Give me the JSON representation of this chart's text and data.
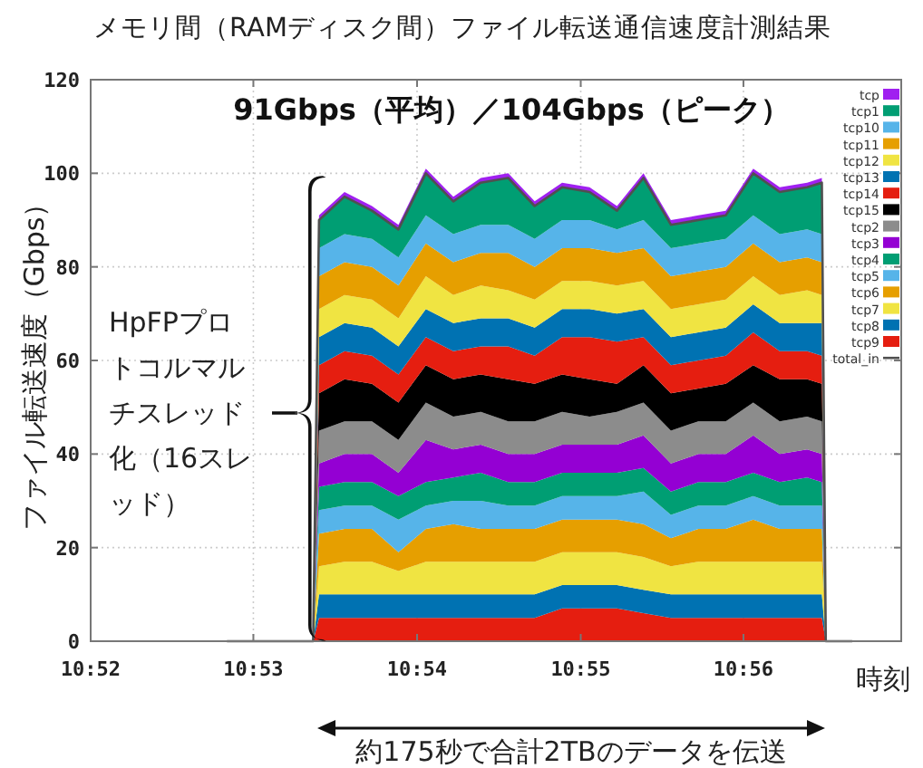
{
  "chart_data": {
    "type": "area",
    "stacked": true,
    "title": "メモリ間（RAMディスク間）ファイル転送通信速度計測結果",
    "xlabel": "時刻",
    "ylabel": "ファイル転送速度（Gbps）",
    "annotations": [
      "91Gbps（平均）／104Gbps（ピーク）",
      "HpFPプロトコルマルチスレッド化（16スレッド）",
      "約175秒で合計2TBのデータを伝送"
    ],
    "x": [
      10.8894,
      10.89,
      10.8926,
      10.8954,
      10.8981,
      10.9009,
      10.9037,
      10.9065,
      10.9093,
      10.912,
      10.9148,
      10.9176,
      10.9204,
      10.9231,
      10.9259,
      10.9287,
      10.9315,
      10.9343,
      10.937,
      10.9398,
      10.9413,
      10.9417
    ],
    "xlim": [
      10.8667,
      10.9494
    ],
    "xticks": [
      {
        "value": 10.8667,
        "label": "10:52"
      },
      {
        "value": 10.8833,
        "label": "10:53"
      },
      {
        "value": 10.9,
        "label": "10:54"
      },
      {
        "value": 10.9167,
        "label": "10:55"
      },
      {
        "value": 10.9333,
        "label": "10:56"
      }
    ],
    "ylim": [
      0,
      120
    ],
    "yticks": [
      0,
      20,
      40,
      60,
      80,
      100,
      120
    ],
    "grid": true,
    "legend": "top right",
    "series": [
      {
        "name": "tcp9",
        "color": "#e51e10",
        "values": [
          0,
          5,
          5,
          5,
          5,
          5,
          5,
          5,
          5,
          5,
          7,
          7,
          7,
          6,
          5,
          5,
          5,
          5,
          5,
          5,
          5,
          0
        ]
      },
      {
        "name": "tcp8",
        "color": "#0072b2",
        "values": [
          0,
          5,
          5,
          5,
          5,
          5,
          5,
          5,
          5,
          5,
          5,
          5,
          5,
          5,
          5,
          5,
          5,
          5,
          5,
          5,
          5,
          0
        ]
      },
      {
        "name": "tcp7",
        "color": "#f0e442",
        "values": [
          0,
          6,
          7,
          7,
          5,
          7,
          7,
          7,
          7,
          7,
          7,
          7,
          7,
          7,
          6,
          7,
          7,
          7,
          7,
          7,
          7,
          0
        ]
      },
      {
        "name": "tcp6",
        "color": "#e69f00",
        "values": [
          0,
          7,
          7,
          7,
          4,
          7,
          8,
          7,
          7,
          7,
          7,
          7,
          7,
          7,
          6,
          7,
          7,
          9,
          7,
          7,
          7,
          0
        ]
      },
      {
        "name": "tcp5",
        "color": "#56b4e9",
        "values": [
          0,
          5,
          5,
          5,
          7,
          5,
          5,
          6,
          5,
          5,
          5,
          5,
          5,
          7,
          5,
          5,
          5,
          5,
          5,
          5,
          5,
          0
        ]
      },
      {
        "name": "tcp4",
        "color": "#009e73",
        "values": [
          0,
          5,
          5,
          5,
          5,
          5,
          5,
          6,
          5,
          5,
          5,
          5,
          5,
          5,
          5,
          5,
          5,
          5,
          5,
          6,
          5,
          0
        ]
      },
      {
        "name": "tcp3",
        "color": "#9400d3",
        "values": [
          0,
          5,
          6,
          6,
          5,
          9,
          6,
          6,
          6,
          6,
          6,
          6,
          6,
          7,
          6,
          6,
          6,
          8,
          6,
          6,
          6,
          0
        ]
      },
      {
        "name": "tcp2",
        "color": "#8c8c8c",
        "values": [
          0,
          7,
          7,
          7,
          7,
          8,
          7,
          7,
          7,
          7,
          7,
          6,
          7,
          7,
          7,
          7,
          7,
          7,
          7,
          7,
          7,
          0
        ]
      },
      {
        "name": "tcp15",
        "color": "#000000",
        "values": [
          0,
          8,
          9,
          8,
          8,
          8,
          8,
          8,
          9,
          8,
          8,
          8,
          6,
          8,
          8,
          7,
          8,
          8,
          9,
          8,
          8,
          0
        ]
      },
      {
        "name": "tcp14",
        "color": "#e51e10",
        "values": [
          0,
          6,
          6,
          6,
          6,
          6,
          6,
          6,
          7,
          6,
          8,
          9,
          9,
          6,
          6,
          6,
          6,
          7,
          6,
          6,
          6,
          0
        ]
      },
      {
        "name": "tcp13",
        "color": "#0072b2",
        "values": [
          0,
          6,
          6,
          6,
          6,
          6,
          6,
          6,
          6,
          6,
          6,
          6,
          6,
          6,
          6,
          6,
          6,
          6,
          6,
          6,
          7,
          0
        ]
      },
      {
        "name": "tcp12",
        "color": "#f0e442",
        "values": [
          0,
          6,
          6,
          6,
          6,
          7,
          6,
          7,
          6,
          6,
          6,
          6,
          6,
          6,
          6,
          6,
          6,
          6,
          6,
          7,
          6,
          0
        ]
      },
      {
        "name": "tcp11",
        "color": "#e69f00",
        "values": [
          0,
          7,
          7,
          7,
          7,
          7,
          7,
          7,
          8,
          7,
          7,
          7,
          7,
          7,
          7,
          7,
          7,
          7,
          7,
          7,
          7,
          0
        ]
      },
      {
        "name": "tcp10",
        "color": "#56b4e9",
        "values": [
          0,
          6,
          6,
          6,
          6,
          6,
          6,
          6,
          6,
          6,
          6,
          6,
          5,
          6,
          6,
          6,
          6,
          6,
          6,
          6,
          6,
          0
        ]
      },
      {
        "name": "tcp1",
        "color": "#009e73",
        "values": [
          0,
          6,
          8,
          6,
          6,
          9,
          7,
          9,
          10,
          7,
          7,
          6,
          4,
          9,
          5,
          5,
          5,
          9,
          9,
          9,
          11,
          0
        ]
      },
      {
        "name": "tcp",
        "color": "#a020f0",
        "values": [
          0,
          1,
          1,
          1,
          1,
          1,
          1,
          1,
          1,
          1,
          1,
          1,
          1,
          1,
          1,
          1,
          1,
          1,
          1,
          1,
          1,
          0
        ]
      },
      {
        "name": "total_in",
        "type": "line",
        "color": "#505050",
        "x": [
          10.8806,
          10.8894,
          10.89,
          10.8926,
          10.8954,
          10.8981,
          10.9009,
          10.9037,
          10.9065,
          10.9093,
          10.912,
          10.9148,
          10.9176,
          10.9204,
          10.9231,
          10.9259,
          10.9287,
          10.9315,
          10.9343,
          10.937,
          10.9398,
          10.9413,
          10.9417,
          10.9444
        ],
        "values": [
          0,
          0,
          90,
          95,
          92,
          88,
          100,
          94,
          98,
          99,
          93,
          97,
          96,
          92,
          99,
          89,
          90,
          91,
          100,
          96,
          97,
          98,
          0,
          0
        ]
      }
    ]
  }
}
